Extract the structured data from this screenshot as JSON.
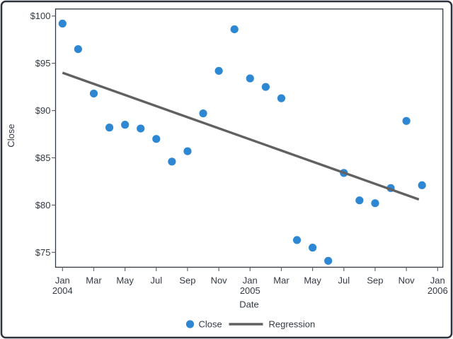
{
  "window": {
    "background": "#ffffff",
    "border_color": "#2c323c"
  },
  "colors": {
    "marker_blue": "#2e87d2",
    "regression_gray": "#616161",
    "frame": "#333942",
    "tick": "#60656c",
    "text": "#333942"
  },
  "axes": {
    "x_label": "Date",
    "y_label": "Close",
    "x_ticks": [
      {
        "month_index": 0,
        "line1": "Jan",
        "line2": "2004"
      },
      {
        "month_index": 2,
        "line1": "Mar"
      },
      {
        "month_index": 4,
        "line1": "May"
      },
      {
        "month_index": 6,
        "line1": "Jul"
      },
      {
        "month_index": 8,
        "line1": "Sep"
      },
      {
        "month_index": 10,
        "line1": "Nov"
      },
      {
        "month_index": 12,
        "line1": "Jan",
        "line2": "2005"
      },
      {
        "month_index": 14,
        "line1": "Mar"
      },
      {
        "month_index": 16,
        "line1": "May"
      },
      {
        "month_index": 18,
        "line1": "Jul"
      },
      {
        "month_index": 20,
        "line1": "Sep"
      },
      {
        "month_index": 22,
        "line1": "Nov"
      },
      {
        "month_index": 24,
        "line1": "Jan",
        "line2": "2006"
      }
    ],
    "y_ticks": [
      {
        "value": 100,
        "label": "$100"
      },
      {
        "value": 95,
        "label": "$95"
      },
      {
        "value": 90,
        "label": "$90"
      },
      {
        "value": 85,
        "label": "$85"
      },
      {
        "value": 80,
        "label": "$80"
      },
      {
        "value": 75,
        "label": "$75"
      }
    ]
  },
  "chart_data": {
    "type": "scatter",
    "title": "",
    "xlabel": "Date",
    "ylabel": "Close",
    "grid": false,
    "legend_position": "bottom-center",
    "ylim": [
      73.3,
      100.8
    ],
    "xlim_months": [
      -0.45,
      24.35
    ],
    "x_categories": [
      "Jan 2004",
      "Feb 2004",
      "Mar 2004",
      "Apr 2004",
      "May 2004",
      "Jun 2004",
      "Jul 2004",
      "Aug 2004",
      "Sep 2004",
      "Oct 2004",
      "Nov 2004",
      "Dec 2004",
      "Jan 2005",
      "Feb 2005",
      "Mar 2005",
      "Apr 2005",
      "May 2005",
      "Jun 2005",
      "Jul 2005",
      "Aug 2005",
      "Sep 2005",
      "Oct 2005",
      "Nov 2005",
      "Dec 2005"
    ],
    "series": [
      {
        "name": "Close",
        "type": "scatter",
        "color": "#2e87d2",
        "month_indices": [
          0,
          1,
          2,
          3,
          4,
          5,
          6,
          7,
          8,
          9,
          10,
          11,
          12,
          13,
          14,
          15,
          16,
          17,
          18,
          19,
          20,
          21,
          22,
          23
        ],
        "values": [
          99.2,
          96.5,
          91.8,
          88.2,
          88.5,
          88.1,
          87.0,
          84.6,
          85.7,
          89.7,
          94.2,
          98.6,
          93.4,
          92.5,
          91.3,
          76.3,
          75.5,
          74.1,
          83.4,
          80.5,
          80.2,
          81.8,
          88.9,
          82.1
        ]
      },
      {
        "name": "Regression",
        "type": "line",
        "color": "#616161",
        "start": {
          "month_index": 0,
          "value": 94.0
        },
        "end": {
          "month_index": 22.8,
          "value": 80.6
        }
      }
    ]
  },
  "legend": {
    "items": [
      {
        "label": "Close",
        "marker": "dot",
        "color": "#2e87d2"
      },
      {
        "label": "Regression",
        "marker": "line",
        "color": "#616161"
      }
    ]
  }
}
